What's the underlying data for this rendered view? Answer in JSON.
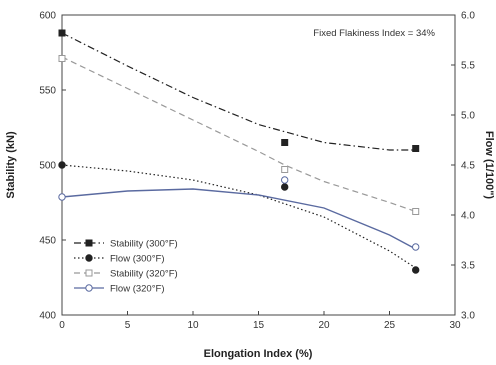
{
  "chart_data": {
    "type": "scatter",
    "annotation": "Fixed Flakiness Index = 34%",
    "xlabel": "Elongation Index (%)",
    "ylabel_left": "Stability (kN)",
    "ylabel_right": "Flow (1/100\")",
    "xlim": [
      0,
      30
    ],
    "ylim_left": [
      400,
      600
    ],
    "ylim_right": [
      3.0,
      6.0
    ],
    "x_ticks": [
      "0",
      "5",
      "10",
      "15",
      "20",
      "25",
      "30"
    ],
    "y_left_ticks": [
      "400",
      "450",
      "500",
      "550",
      "600"
    ],
    "y_right_ticks": [
      "3.0",
      "3.5",
      "4.0",
      "4.5",
      "5.0",
      "5.5",
      "6.0"
    ],
    "grid": false,
    "legend_position": "bottom-left",
    "series": [
      {
        "name": "Stability (300°F)",
        "axis": "left",
        "color": "#222222",
        "marker": "square-filled",
        "line": "dash-dot",
        "x": [
          0,
          17,
          27
        ],
        "values": [
          588,
          515,
          511
        ],
        "fit": [
          [
            0,
            588
          ],
          [
            5,
            566
          ],
          [
            10,
            545
          ],
          [
            15,
            527
          ],
          [
            20,
            515
          ],
          [
            25,
            510
          ],
          [
            27,
            510
          ]
        ]
      },
      {
        "name": "Flow (300°F)",
        "axis": "right",
        "color": "#222222",
        "marker": "circle-filled",
        "line": "dotted",
        "x": [
          0,
          17,
          27
        ],
        "values": [
          4.5,
          4.28,
          3.45
        ],
        "fit": [
          [
            0,
            4.5
          ],
          [
            5,
            4.44
          ],
          [
            10,
            4.35
          ],
          [
            15,
            4.2
          ],
          [
            20,
            3.98
          ],
          [
            25,
            3.64
          ],
          [
            27,
            3.47
          ]
        ]
      },
      {
        "name": "Stability (320°F)",
        "axis": "left",
        "color": "#999999",
        "marker": "square-open",
        "line": "dashed",
        "x": [
          0,
          17,
          27
        ],
        "values": [
          571,
          497,
          469
        ],
        "fit": [
          [
            0,
            572
          ],
          [
            5,
            551
          ],
          [
            10,
            530
          ],
          [
            15,
            509
          ],
          [
            17,
            500
          ],
          [
            20,
            489
          ],
          [
            25,
            475
          ],
          [
            27,
            469
          ]
        ]
      },
      {
        "name": "Flow (320°F)",
        "axis": "right",
        "color": "#5a6aa0",
        "marker": "circle-open",
        "line": "solid",
        "x": [
          0,
          17,
          27
        ],
        "values": [
          4.18,
          4.35,
          3.68
        ],
        "fit": [
          [
            0,
            4.18
          ],
          [
            5,
            4.24
          ],
          [
            10,
            4.26
          ],
          [
            15,
            4.2
          ],
          [
            20,
            4.07
          ],
          [
            25,
            3.8
          ],
          [
            27,
            3.66
          ]
        ]
      }
    ]
  }
}
